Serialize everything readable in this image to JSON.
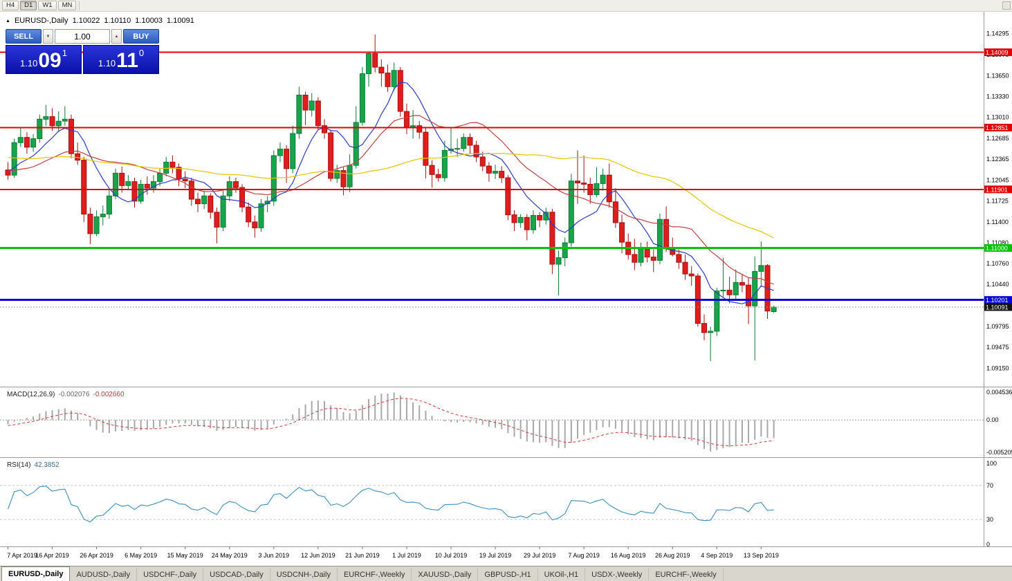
{
  "icons": {
    "volume_down": "▼",
    "volume_up": "▲",
    "marker": "▲"
  },
  "toolbar": {
    "timeframes": [
      {
        "label": "H4",
        "active": false
      },
      {
        "label": "D1",
        "active": true
      },
      {
        "label": "W1",
        "active": false
      },
      {
        "label": "MN",
        "active": false
      }
    ]
  },
  "header": {
    "symbol": "EURUSD-,Daily",
    "open": "1.10022",
    "high": "1.10110",
    "low": "1.10003",
    "close": "1.10091"
  },
  "trade_panel": {
    "sell_label": "SELL",
    "buy_label": "BUY",
    "volume": "1.00",
    "sell_price": {
      "prefix": "1.10",
      "big": "09",
      "sup": "1"
    },
    "buy_price": {
      "prefix": "1.10",
      "big": "11",
      "sup": "0"
    }
  },
  "indicators": {
    "macd": {
      "label": "MACD(12,26,9)",
      "value_main": "-0.002076",
      "value_signal": "-0.002660",
      "fast": 12,
      "slow": 26,
      "signal": 9,
      "range": {
        "max": 0.00454,
        "min": -0.00521
      },
      "axis_ticks": [
        {
          "value": 0.004536,
          "label": "0.004536"
        },
        {
          "value": 0,
          "label": "0.00"
        },
        {
          "value": -0.005205,
          "label": "-0.005205"
        }
      ]
    },
    "rsi": {
      "label": "RSI(14)",
      "value": "42.3852",
      "period": 14,
      "levels": [
        70,
        30
      ],
      "axis_ticks": [
        {
          "value": 100,
          "label": "100"
        },
        {
          "value": 70,
          "label": "70"
        },
        {
          "value": 30,
          "label": "30"
        },
        {
          "value": 0,
          "label": "0"
        }
      ]
    }
  },
  "colors": {
    "candle_up": "#17a44b",
    "candle_up_border": "#0c7a35",
    "candle_down": "#df1d1d",
    "candle_down_border": "#a31212",
    "macd_hist": "#a8a8a8",
    "macd_signal": "#cf3b3b",
    "rsi_line": "#3a8fc0",
    "current_price": "#151515"
  },
  "chart_data": {
    "type": "candlestick",
    "symbol": "EURUSD",
    "timeframe": "Daily",
    "price_axis": {
      "min": 1.089,
      "max": 1.146,
      "ticks": [
        "1.14295",
        "1.13975",
        "1.13650",
        "1.13330",
        "1.13010",
        "1.12685",
        "1.12365",
        "1.12045",
        "1.11725",
        "1.11400",
        "1.11080",
        "1.10760",
        "1.10440",
        "1.10120",
        "1.09795",
        "1.09475",
        "1.09150"
      ]
    },
    "hlines": [
      {
        "price": 1.14009,
        "label": "1.14009",
        "color": "#e00000",
        "width": 2
      },
      {
        "price": 1.12851,
        "label": "1.12851",
        "color": "#e00000",
        "width": 2
      },
      {
        "price": 1.11901,
        "label": "1.11901",
        "color": "#e00000",
        "width": 2
      },
      {
        "price": 1.11,
        "label": "1.11000",
        "color": "#00c300",
        "width": 3
      },
      {
        "price": 1.10201,
        "label": "1.10201",
        "color": "#0000d6",
        "width": 3
      }
    ],
    "current_price": {
      "value": 1.10091,
      "label": "1.10091"
    },
    "moving_averages": [
      {
        "period": 8,
        "color": "#2b3cc4"
      },
      {
        "period": 20,
        "color": "#c04040"
      },
      {
        "period": 50,
        "color": "#e9c400"
      }
    ],
    "date_labels": [
      {
        "index": 0,
        "label": "7 Apr 2019"
      },
      {
        "index": 7,
        "label": "16 Apr 2019"
      },
      {
        "index": 14,
        "label": "26 Apr 2019"
      },
      {
        "index": 21,
        "label": "6 May 2019"
      },
      {
        "index": 28,
        "label": "15 May 2019"
      },
      {
        "index": 35,
        "label": "24 May 2019"
      },
      {
        "index": 42,
        "label": "3 Jun 2019"
      },
      {
        "index": 49,
        "label": "12 Jun 2019"
      },
      {
        "index": 56,
        "label": "21 Jun 2019"
      },
      {
        "index": 63,
        "label": "1 Jul 2019"
      },
      {
        "index": 70,
        "label": "10 Jul 2019"
      },
      {
        "index": 77,
        "label": "19 Jul 2019"
      },
      {
        "index": 84,
        "label": "29 Jul 2019"
      },
      {
        "index": 91,
        "label": "7 Aug 2019"
      },
      {
        "index": 98,
        "label": "16 Aug 2019"
      },
      {
        "index": 105,
        "label": "26 Aug 2019"
      },
      {
        "index": 112,
        "label": "4 Sep 2019"
      },
      {
        "index": 119,
        "label": "13 Sep 2019"
      }
    ],
    "pre_closes": [
      1.1305,
      1.1298,
      1.131,
      1.1322,
      1.133,
      1.1318,
      1.13,
      1.1292,
      1.1285,
      1.127,
      1.1262,
      1.125,
      1.1258,
      1.127,
      1.1282,
      1.1275,
      1.1268,
      1.1255,
      1.124,
      1.1232,
      1.1224,
      1.123,
      1.1238,
      1.1245,
      1.1252,
      1.126,
      1.1268,
      1.1258,
      1.1248,
      1.1238,
      1.1228,
      1.1218,
      1.1225,
      1.1232,
      1.124,
      1.1248,
      1.1242,
      1.1235,
      1.1228,
      1.122,
      1.1212,
      1.1205,
      1.1198,
      1.1205,
      1.1212,
      1.122,
      1.1228,
      1.1222,
      1.1215,
      1.1208,
      1.1215,
      1.1222,
      1.1228,
      1.1222,
      1.1218
    ],
    "candles": [
      [
        1.122,
        1.1232,
        1.1205,
        1.1212
      ],
      [
        1.1212,
        1.1268,
        1.1208,
        1.1262
      ],
      [
        1.1262,
        1.1285,
        1.1255,
        1.127
      ],
      [
        1.127,
        1.1278,
        1.1245,
        1.1255
      ],
      [
        1.1255,
        1.1275,
        1.1248,
        1.1268
      ],
      [
        1.1268,
        1.1305,
        1.1262,
        1.1298
      ],
      [
        1.1298,
        1.132,
        1.1288,
        1.1302
      ],
      [
        1.1302,
        1.1315,
        1.128,
        1.1288
      ],
      [
        1.1288,
        1.131,
        1.1278,
        1.1295
      ],
      [
        1.1295,
        1.1318,
        1.1288,
        1.1298
      ],
      [
        1.1298,
        1.1305,
        1.1238,
        1.1245
      ],
      [
        1.1245,
        1.1262,
        1.1228,
        1.1235
      ],
      [
        1.1235,
        1.124,
        1.114,
        1.1152
      ],
      [
        1.1152,
        1.1162,
        1.1106,
        1.1122
      ],
      [
        1.1122,
        1.1158,
        1.1118,
        1.1148
      ],
      [
        1.1148,
        1.1165,
        1.1135,
        1.1152
      ],
      [
        1.1152,
        1.1192,
        1.1145,
        1.118
      ],
      [
        1.118,
        1.1222,
        1.1175,
        1.1215
      ],
      [
        1.1215,
        1.1225,
        1.1185,
        1.1196
      ],
      [
        1.1196,
        1.1212,
        1.119,
        1.1202
      ],
      [
        1.1202,
        1.1208,
        1.1162,
        1.1172
      ],
      [
        1.1172,
        1.1205,
        1.1168,
        1.1198
      ],
      [
        1.1198,
        1.121,
        1.1182,
        1.1192
      ],
      [
        1.1192,
        1.1212,
        1.1185,
        1.1202
      ],
      [
        1.1202,
        1.1222,
        1.1195,
        1.1215
      ],
      [
        1.1215,
        1.124,
        1.121,
        1.1232
      ],
      [
        1.1232,
        1.1242,
        1.1215,
        1.1224
      ],
      [
        1.1224,
        1.123,
        1.1195,
        1.1206
      ],
      [
        1.1206,
        1.1218,
        1.1192,
        1.1203
      ],
      [
        1.1203,
        1.1208,
        1.1165,
        1.1175
      ],
      [
        1.1175,
        1.1185,
        1.1155,
        1.1168
      ],
      [
        1.1168,
        1.1188,
        1.116,
        1.118
      ],
      [
        1.118,
        1.1184,
        1.1145,
        1.1155
      ],
      [
        1.1155,
        1.1162,
        1.1107,
        1.1132
      ],
      [
        1.1132,
        1.1188,
        1.1126,
        1.118
      ],
      [
        1.118,
        1.121,
        1.1172,
        1.1202
      ],
      [
        1.1202,
        1.1208,
        1.1185,
        1.1193
      ],
      [
        1.1193,
        1.1198,
        1.1155,
        1.1163
      ],
      [
        1.1163,
        1.117,
        1.1132,
        1.114
      ],
      [
        1.114,
        1.115,
        1.1116,
        1.1131
      ],
      [
        1.1131,
        1.1175,
        1.1125,
        1.1168
      ],
      [
        1.1168,
        1.118,
        1.1155,
        1.1172
      ],
      [
        1.1172,
        1.125,
        1.1165,
        1.1242
      ],
      [
        1.1242,
        1.1262,
        1.1232,
        1.1252
      ],
      [
        1.1252,
        1.1258,
        1.12,
        1.1222
      ],
      [
        1.1222,
        1.1288,
        1.1215,
        1.1276
      ],
      [
        1.1276,
        1.1348,
        1.1268,
        1.1335
      ],
      [
        1.1335,
        1.134,
        1.1289,
        1.1312
      ],
      [
        1.1312,
        1.1338,
        1.1302,
        1.1326
      ],
      [
        1.1326,
        1.1332,
        1.1282,
        1.1288
      ],
      [
        1.1288,
        1.1298,
        1.1268,
        1.1277
      ],
      [
        1.1277,
        1.1282,
        1.1202,
        1.1207
      ],
      [
        1.1207,
        1.1228,
        1.12,
        1.1219
      ],
      [
        1.1219,
        1.1224,
        1.1181,
        1.1194
      ],
      [
        1.1194,
        1.1244,
        1.1186,
        1.1227
      ],
      [
        1.1227,
        1.1318,
        1.1222,
        1.1293
      ],
      [
        1.1293,
        1.1378,
        1.1288,
        1.1368
      ],
      [
        1.1368,
        1.1402,
        1.1348,
        1.1399
      ],
      [
        1.1399,
        1.1428,
        1.137,
        1.1378
      ],
      [
        1.1378,
        1.139,
        1.1348,
        1.1369
      ],
      [
        1.1369,
        1.1382,
        1.134,
        1.1348
      ],
      [
        1.1348,
        1.1385,
        1.1342,
        1.1373
      ],
      [
        1.1373,
        1.1378,
        1.1302,
        1.131
      ],
      [
        1.131,
        1.1322,
        1.1275,
        1.1285
      ],
      [
        1.1285,
        1.1312,
        1.1268,
        1.1288
      ],
      [
        1.1288,
        1.1295,
        1.1268,
        1.1278
      ],
      [
        1.1278,
        1.1285,
        1.1207,
        1.1227
      ],
      [
        1.1227,
        1.1235,
        1.1193,
        1.1213
      ],
      [
        1.1213,
        1.1222,
        1.1202,
        1.1208
      ],
      [
        1.1208,
        1.1265,
        1.1202,
        1.125
      ],
      [
        1.125,
        1.1285,
        1.1245,
        1.1252
      ],
      [
        1.1252,
        1.1268,
        1.124,
        1.1253
      ],
      [
        1.1253,
        1.1276,
        1.1248,
        1.127
      ],
      [
        1.127,
        1.1276,
        1.1245,
        1.1258
      ],
      [
        1.1258,
        1.1265,
        1.1232,
        1.124
      ],
      [
        1.124,
        1.1248,
        1.1218,
        1.1226
      ],
      [
        1.1226,
        1.1232,
        1.1202,
        1.1215
      ],
      [
        1.1215,
        1.1228,
        1.1206,
        1.1218
      ],
      [
        1.1218,
        1.1226,
        1.12,
        1.1208
      ],
      [
        1.1208,
        1.1212,
        1.1143,
        1.1151
      ],
      [
        1.1151,
        1.1158,
        1.1126,
        1.1139
      ],
      [
        1.1139,
        1.1152,
        1.1131,
        1.1147
      ],
      [
        1.1147,
        1.1152,
        1.1112,
        1.1128
      ],
      [
        1.1128,
        1.1158,
        1.1122,
        1.115
      ],
      [
        1.115,
        1.1155,
        1.1132,
        1.1143
      ],
      [
        1.1143,
        1.1162,
        1.1136,
        1.1155
      ],
      [
        1.1155,
        1.116,
        1.106,
        1.1075
      ],
      [
        1.1075,
        1.1096,
        1.1027,
        1.1085
      ],
      [
        1.1085,
        1.1116,
        1.1072,
        1.1108
      ],
      [
        1.1108,
        1.1214,
        1.1102,
        1.1203
      ],
      [
        1.1203,
        1.125,
        1.1168,
        1.12
      ],
      [
        1.12,
        1.1242,
        1.1185,
        1.1198
      ],
      [
        1.1198,
        1.1208,
        1.1168,
        1.1182
      ],
      [
        1.1182,
        1.1224,
        1.1178,
        1.1199
      ],
      [
        1.1199,
        1.1222,
        1.1188,
        1.1212
      ],
      [
        1.1212,
        1.123,
        1.1162,
        1.1171
      ],
      [
        1.1171,
        1.1192,
        1.1131,
        1.1139
      ],
      [
        1.1139,
        1.1151,
        1.1092,
        1.1109
      ],
      [
        1.1109,
        1.1122,
        1.1082,
        1.109
      ],
      [
        1.109,
        1.1114,
        1.1066,
        1.1078
      ],
      [
        1.1078,
        1.1108,
        1.1072,
        1.11
      ],
      [
        1.11,
        1.111,
        1.1078,
        1.1086
      ],
      [
        1.1086,
        1.1098,
        1.1063,
        1.1081
      ],
      [
        1.1081,
        1.1153,
        1.1075,
        1.1144
      ],
      [
        1.1144,
        1.1164,
        1.1094,
        1.1101
      ],
      [
        1.1101,
        1.1116,
        1.1087,
        1.109
      ],
      [
        1.109,
        1.1098,
        1.1068,
        1.1078
      ],
      [
        1.1078,
        1.109,
        1.1051,
        1.106
      ],
      [
        1.106,
        1.1072,
        1.1042,
        1.1057
      ],
      [
        1.1057,
        1.1061,
        1.0979,
        1.0984
      ],
      [
        1.0984,
        1.0998,
        1.0958,
        1.097
      ],
      [
        1.097,
        1.0979,
        1.0926,
        1.0972
      ],
      [
        1.0972,
        1.1039,
        1.0965,
        1.1034
      ],
      [
        1.1034,
        1.1085,
        1.1024,
        1.1035
      ],
      [
        1.1035,
        1.1056,
        1.1015,
        1.1028
      ],
      [
        1.1028,
        1.1067,
        1.1022,
        1.1047
      ],
      [
        1.1047,
        1.106,
        1.1032,
        1.1043
      ],
      [
        1.1043,
        1.1055,
        1.0983,
        1.1011
      ],
      [
        1.1011,
        1.1087,
        1.0927,
        1.1064
      ],
      [
        1.1064,
        1.111,
        1.104,
        1.1073
      ],
      [
        1.1073,
        1.1075,
        1.0991,
        1.1003
      ],
      [
        1.10022,
        1.1011,
        1.10003,
        1.10091
      ]
    ]
  },
  "bottom_tabs": {
    "items": [
      {
        "label": "EURUSD-,Daily",
        "active": true
      },
      {
        "label": "AUDUSD-,Daily",
        "active": false
      },
      {
        "label": "USDCHF-,Daily",
        "active": false
      },
      {
        "label": "USDCAD-,Daily",
        "active": false
      },
      {
        "label": "USDCNH-,Daily",
        "active": false
      },
      {
        "label": "EURCHF-,Weekly",
        "active": false
      },
      {
        "label": "XAUUSD-,Daily",
        "active": false
      },
      {
        "label": "GBPUSD-,H1",
        "active": false
      },
      {
        "label": "UKOil-,H1",
        "active": false
      },
      {
        "label": "USDX-,Weekly",
        "active": false
      },
      {
        "label": "EURCHF-,Weekly",
        "active": false
      }
    ]
  }
}
